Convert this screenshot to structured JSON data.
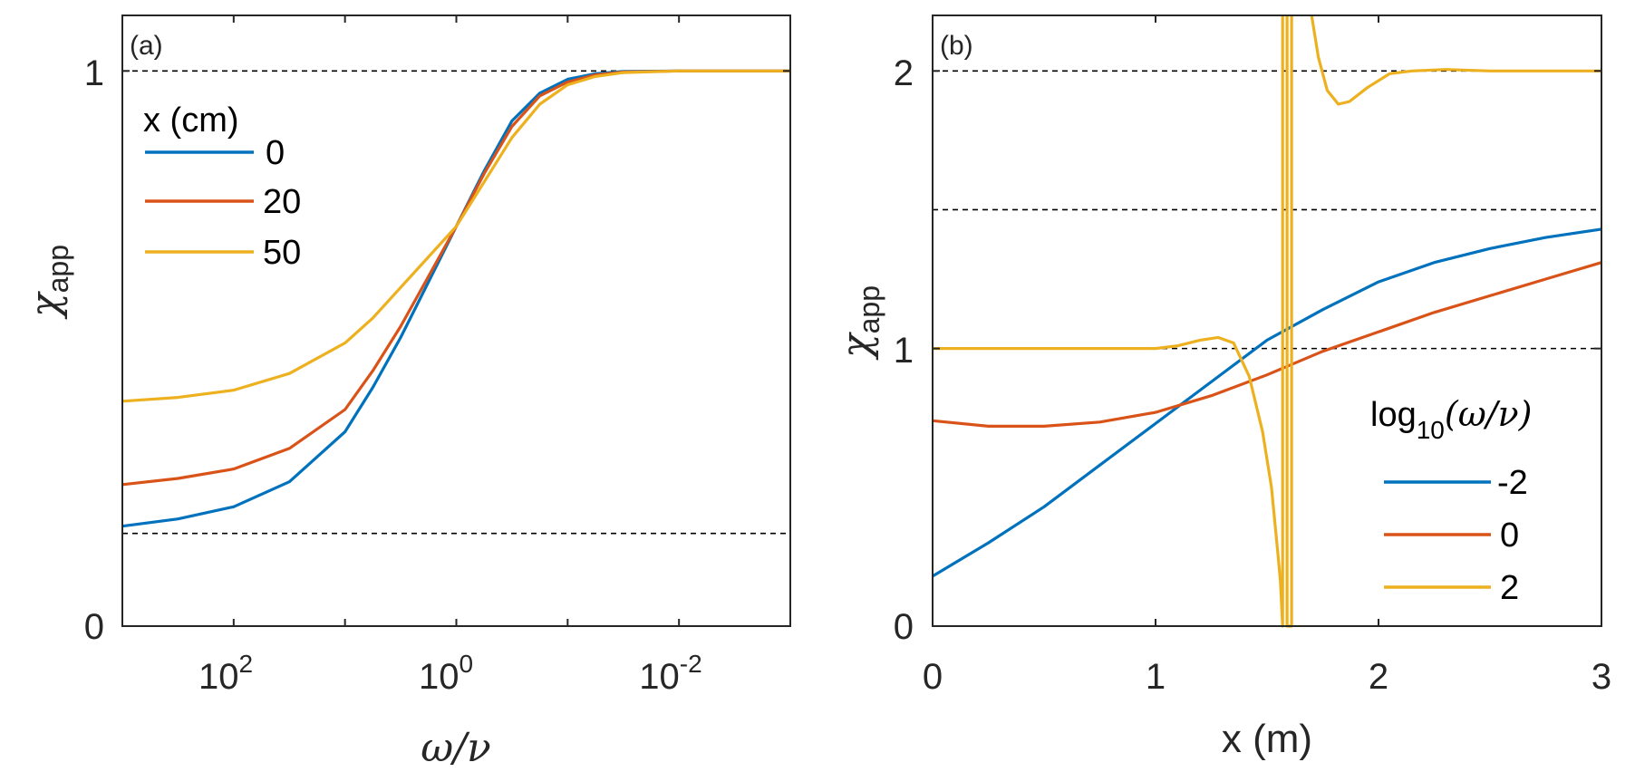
{
  "colors": {
    "blue": "#0072BD",
    "red": "#D95319",
    "yellow": "#EDB120",
    "axis": "#262626"
  },
  "chart_data": [
    {
      "type": "line",
      "panel_label": "(a)",
      "xlabel": "ω/ν",
      "ylabel_main": "χ",
      "ylabel_sub": "app",
      "x_scale": "log",
      "x_reversed": true,
      "xlim_log10": [
        3,
        -3
      ],
      "ylim": [
        0,
        1.1
      ],
      "x_ticks": [
        {
          "log10": 2,
          "base": "10",
          "exp": "2"
        },
        {
          "log10": 0,
          "base": "10",
          "exp": "0"
        },
        {
          "log10": -2,
          "base": "10",
          "exp": "-2"
        }
      ],
      "y_ticks": [
        {
          "value": 0,
          "label": "0"
        },
        {
          "value": 1,
          "label": "1"
        }
      ],
      "ref_lines_y": [
        1,
        0.167
      ],
      "legend": {
        "title": "x (cm)",
        "location": "top-left"
      },
      "series": [
        {
          "name": "0",
          "color": "#0072BD",
          "log10_x": [
            3,
            2.5,
            2,
            1.5,
            1,
            0.75,
            0.5,
            0.25,
            0,
            -0.25,
            -0.5,
            -0.75,
            -1,
            -1.25,
            -1.5,
            -2,
            -2.5,
            -3
          ],
          "y": [
            0.18,
            0.193,
            0.215,
            0.26,
            0.35,
            0.43,
            0.52,
            0.62,
            0.72,
            0.82,
            0.91,
            0.96,
            0.985,
            0.995,
            0.999,
            1.0,
            1.0,
            1.0
          ]
        },
        {
          "name": "20",
          "color": "#D95319",
          "log10_x": [
            3,
            2.5,
            2,
            1.5,
            1,
            0.75,
            0.5,
            0.25,
            0,
            -0.25,
            -0.5,
            -0.75,
            -1,
            -1.25,
            -1.5,
            -2,
            -2.5,
            -3
          ],
          "y": [
            0.255,
            0.266,
            0.283,
            0.32,
            0.39,
            0.46,
            0.54,
            0.63,
            0.72,
            0.815,
            0.9,
            0.955,
            0.98,
            0.993,
            0.998,
            1.0,
            1.0,
            1.0
          ]
        },
        {
          "name": "50",
          "color": "#EDB120",
          "log10_x": [
            3,
            2.5,
            2,
            1.5,
            1,
            0.75,
            0.5,
            0.25,
            0,
            -0.25,
            -0.5,
            -0.75,
            -1,
            -1.25,
            -1.5,
            -2,
            -2.5,
            -3
          ],
          "y": [
            0.405,
            0.412,
            0.425,
            0.455,
            0.51,
            0.555,
            0.61,
            0.665,
            0.72,
            0.8,
            0.88,
            0.94,
            0.975,
            0.99,
            0.997,
            1.0,
            1.0,
            1.0
          ]
        }
      ]
    },
    {
      "type": "line",
      "panel_label": "(b)",
      "xlabel": "x (m)",
      "ylabel_main": "χ",
      "ylabel_sub": "app",
      "xlim": [
        0,
        3
      ],
      "ylim": [
        0,
        2.2
      ],
      "x_ticks": [
        {
          "value": 0,
          "label": "0"
        },
        {
          "value": 1,
          "label": "1"
        },
        {
          "value": 2,
          "label": "2"
        },
        {
          "value": 3,
          "label": "3"
        }
      ],
      "y_ticks": [
        {
          "value": 0,
          "label": "0"
        },
        {
          "value": 1,
          "label": "1"
        },
        {
          "value": 2,
          "label": "2"
        }
      ],
      "ref_lines_y": [
        2,
        1.5,
        1
      ],
      "legend": {
        "title_base": "log",
        "title_sub": "10",
        "title_arg": "(ω/ν)",
        "location": "bottom-right"
      },
      "series": [
        {
          "name": "-2",
          "color": "#0072BD",
          "x": [
            0,
            0.25,
            0.5,
            0.75,
            1,
            1.25,
            1.5,
            1.75,
            2,
            2.25,
            2.5,
            2.75,
            3
          ],
          "y": [
            0.18,
            0.3,
            0.43,
            0.58,
            0.73,
            0.88,
            1.03,
            1.14,
            1.24,
            1.31,
            1.36,
            1.4,
            1.43
          ]
        },
        {
          "name": "0",
          "color": "#D95319",
          "x": [
            0,
            0.25,
            0.5,
            0.75,
            1,
            1.25,
            1.5,
            1.75,
            2,
            2.25,
            2.5,
            2.75,
            3
          ],
          "y": [
            0.74,
            0.72,
            0.72,
            0.735,
            0.77,
            0.83,
            0.905,
            0.99,
            1.06,
            1.13,
            1.19,
            1.25,
            1.31
          ]
        },
        {
          "name": "2",
          "color": "#EDB120",
          "segments": [
            {
              "x": [
                0,
                0.5,
                1,
                1.1,
                1.2,
                1.28,
                1.35,
                1.42,
                1.48,
                1.52,
                1.55,
                1.56
              ],
              "y": [
                1.0,
                1.0,
                1.0,
                1.01,
                1.03,
                1.04,
                1.02,
                0.9,
                0.7,
                0.5,
                0.25,
                0.16
              ]
            },
            {
              "x": [
                1.56,
                1.57,
                1.57
              ],
              "y": [
                0.16,
                0.0,
                2.2
              ]
            },
            {
              "x": [
                1.59,
                1.59,
                1.61,
                1.61
              ],
              "y": [
                2.2,
                0.0,
                0.0,
                2.2
              ]
            },
            {
              "x": [
                1.7,
                1.73,
                1.77,
                1.82,
                1.87,
                1.95,
                2.05,
                2.15,
                2.3,
                2.5,
                3.0
              ],
              "y": [
                2.2,
                2.05,
                1.93,
                1.88,
                1.89,
                1.94,
                1.99,
                2.0,
                2.005,
                2.0,
                2.0
              ]
            }
          ]
        }
      ]
    }
  ]
}
